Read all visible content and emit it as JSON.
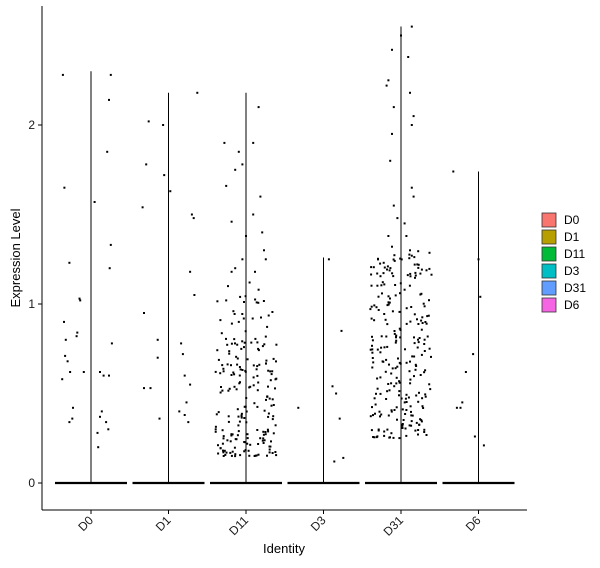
{
  "chart_data": {
    "type": "scatter",
    "subtype": "violin-jitter",
    "xlabel": "Identity",
    "ylabel": "Expression Level",
    "ylim": [
      -0.15,
      2.65
    ],
    "yticks": [
      0,
      1,
      2
    ],
    "categories": [
      "D0",
      "D1",
      "D11",
      "D3",
      "D31",
      "D6"
    ],
    "legend": {
      "placement": "right",
      "items": [
        {
          "label": "D0",
          "color": "#F8766D"
        },
        {
          "label": "D1",
          "color": "#B79F00"
        },
        {
          "label": "D11",
          "color": "#00BA38"
        },
        {
          "label": "D3",
          "color": "#00BFC4"
        },
        {
          "label": "D31",
          "color": "#619CFF"
        },
        {
          "label": "D6",
          "color": "#F564E3"
        }
      ]
    },
    "series": [
      {
        "category": "D0",
        "max": 2.3,
        "points": [
          [
            -0.78,
            2.28
          ],
          [
            -0.74,
            1.65
          ],
          [
            -0.6,
            1.23
          ],
          [
            -0.75,
            0.9
          ],
          [
            -0.7,
            0.8
          ],
          [
            -0.72,
            0.71
          ],
          [
            -0.65,
            0.68
          ],
          [
            -0.8,
            0.58
          ],
          [
            -0.58,
            0.62
          ],
          [
            -0.5,
            0.42
          ],
          [
            -0.6,
            0.34
          ],
          [
            -0.52,
            0.36
          ],
          [
            -0.3,
            1.02
          ],
          [
            -0.32,
            1.03
          ],
          [
            -0.38,
            0.84
          ],
          [
            -0.4,
            0.82
          ],
          [
            -0.2,
            0.62
          ],
          [
            0.1,
            1.57
          ],
          [
            0.25,
            0.62
          ],
          [
            0.35,
            0.6
          ],
          [
            0.3,
            0.4
          ],
          [
            0.25,
            0.37
          ],
          [
            0.18,
            0.28
          ],
          [
            0.2,
            0.2
          ],
          [
            0.42,
            0.34
          ],
          [
            0.48,
            0.3
          ],
          [
            0.55,
            2.28
          ],
          [
            0.5,
            2.14
          ],
          [
            0.45,
            1.85
          ],
          [
            0.55,
            1.33
          ],
          [
            0.52,
            1.2
          ],
          [
            0.58,
            0.78
          ],
          [
            0.5,
            0.6
          ]
        ]
      },
      {
        "category": "D1",
        "max": 2.18,
        "points": [
          [
            -0.55,
            2.02
          ],
          [
            -0.62,
            1.78
          ],
          [
            -0.72,
            1.54
          ],
          [
            -0.68,
            0.95
          ],
          [
            -0.68,
            0.53
          ],
          [
            -0.5,
            0.53
          ],
          [
            -0.3,
            0.7
          ],
          [
            -0.3,
            0.8
          ],
          [
            -0.25,
            0.36
          ],
          [
            -0.15,
            2.0
          ],
          [
            -0.12,
            1.72
          ],
          [
            0.05,
            1.63
          ],
          [
            0.3,
            0.4
          ],
          [
            0.35,
            0.78
          ],
          [
            0.4,
            0.72
          ],
          [
            0.45,
            0.6
          ],
          [
            0.5,
            0.45
          ],
          [
            0.45,
            0.38
          ],
          [
            0.55,
            0.34
          ],
          [
            0.65,
            1.5
          ],
          [
            0.7,
            1.48
          ],
          [
            0.6,
            1.18
          ],
          [
            0.72,
            1.05
          ],
          [
            0.8,
            2.18
          ],
          [
            0.6,
            0.55
          ]
        ]
      },
      {
        "category": "D11",
        "max": 2.18,
        "points": [
          [
            -0.6,
            1.9
          ],
          [
            -0.55,
            1.66
          ],
          [
            -0.4,
            1.46
          ],
          [
            -0.3,
            1.75
          ],
          [
            -0.2,
            1.85
          ],
          [
            -0.1,
            1.78
          ],
          [
            0.2,
            1.9
          ],
          [
            0.35,
            2.1
          ],
          [
            0.4,
            1.6
          ],
          [
            0.2,
            1.5
          ],
          [
            0.0,
            1.38
          ],
          [
            -0.1,
            1.25
          ],
          [
            -0.3,
            1.2
          ],
          [
            -0.4,
            1.18
          ],
          [
            -0.5,
            1.1
          ],
          [
            -0.55,
            1.02
          ],
          [
            -0.35,
            0.96
          ],
          [
            -0.2,
            0.9
          ],
          [
            0.1,
            1.12
          ],
          [
            0.25,
            1.18
          ],
          [
            0.35,
            1.08
          ],
          [
            0.45,
            1.4
          ],
          [
            0.5,
            1.3
          ],
          [
            0.55,
            1.25
          ]
        ]
      },
      {
        "category": "D3",
        "max": 1.26,
        "points": [
          [
            -0.7,
            0.42
          ],
          [
            0.15,
            1.25
          ],
          [
            0.25,
            0.54
          ],
          [
            0.3,
            0.12
          ],
          [
            0.35,
            0.5
          ],
          [
            0.45,
            0.36
          ],
          [
            0.5,
            0.85
          ],
          [
            0.55,
            0.14
          ]
        ]
      },
      {
        "category": "D31",
        "max": 2.55,
        "points": [
          [
            -0.4,
            2.22
          ],
          [
            -0.35,
            2.25
          ],
          [
            -0.25,
            2.42
          ],
          [
            0.0,
            2.5
          ],
          [
            0.3,
            2.55
          ],
          [
            0.2,
            2.38
          ],
          [
            -0.2,
            2.1
          ],
          [
            -0.25,
            1.95
          ],
          [
            0.25,
            2.18
          ],
          [
            0.3,
            2.0
          ],
          [
            0.35,
            2.05
          ],
          [
            -0.3,
            1.8
          ],
          [
            0.3,
            1.65
          ],
          [
            0.35,
            1.6
          ],
          [
            -0.2,
            1.55
          ],
          [
            0.1,
            1.45
          ],
          [
            -0.1,
            1.48
          ],
          [
            0.15,
            1.38
          ],
          [
            -0.35,
            1.38
          ],
          [
            -0.25,
            1.32
          ],
          [
            0.25,
            1.3
          ],
          [
            0.3,
            1.27
          ]
        ]
      },
      {
        "category": "D6",
        "max": 1.74,
        "points": [
          [
            -0.7,
            1.74
          ],
          [
            -0.6,
            0.42
          ],
          [
            -0.5,
            0.42
          ],
          [
            -0.45,
            0.45
          ],
          [
            -0.35,
            0.62
          ],
          [
            -0.1,
            0.26
          ],
          [
            0.0,
            1.25
          ],
          [
            0.05,
            1.04
          ],
          [
            -0.15,
            0.72
          ],
          [
            0.15,
            0.21
          ]
        ]
      }
    ]
  }
}
